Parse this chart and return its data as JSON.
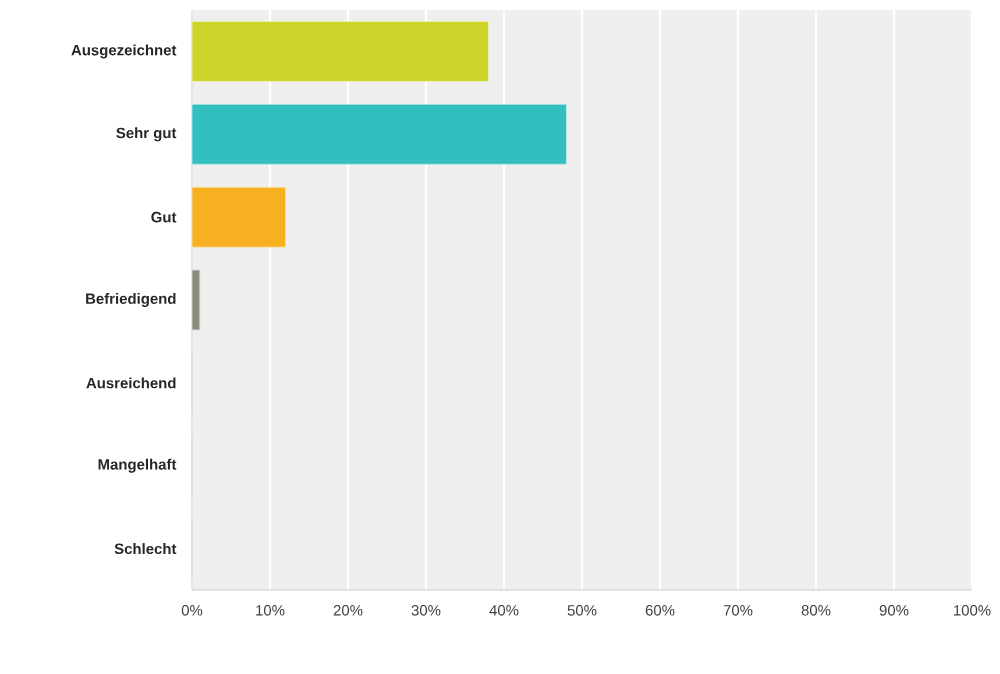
{
  "chart_data": {
    "type": "bar",
    "orientation": "horizontal",
    "categories": [
      "Ausgezeichnet",
      "Sehr gut",
      "Gut",
      "Befriedigend",
      "Ausreichend",
      "Mangelhaft",
      "Schlecht"
    ],
    "values": [
      38,
      48,
      12,
      1,
      0,
      0,
      0
    ],
    "colors": [
      "#ccd42a",
      "#33bec0",
      "#f7b01f",
      "#8b8c7c",
      "#8b8c7c",
      "#8b8c7c",
      "#8b8c7c"
    ],
    "xlim": [
      0,
      100
    ],
    "xticks": [
      {
        "value": 0,
        "label": "0%"
      },
      {
        "value": 10,
        "label": "10%"
      },
      {
        "value": 20,
        "label": "20%"
      },
      {
        "value": 30,
        "label": "30%"
      },
      {
        "value": 40,
        "label": "40%"
      },
      {
        "value": 50,
        "label": "50%"
      },
      {
        "value": 60,
        "label": "60%"
      },
      {
        "value": 70,
        "label": "70%"
      },
      {
        "value": 80,
        "label": "80%"
      },
      {
        "value": 90,
        "label": "90%"
      },
      {
        "value": 100,
        "label": "100%"
      }
    ],
    "grid": "x"
  }
}
